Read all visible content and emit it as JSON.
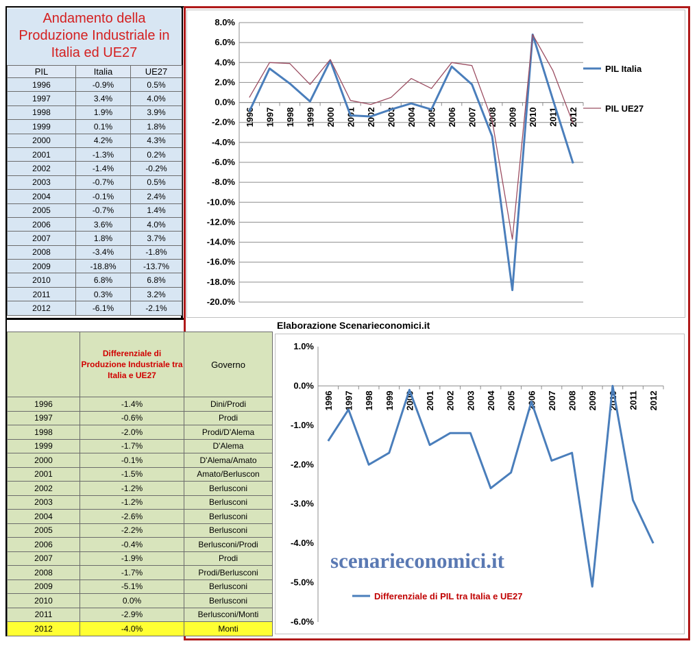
{
  "table1": {
    "title": "Andamento della Produzione Industriale in Italia ed UE27",
    "headers": [
      "PIL",
      "Italia",
      "UE27"
    ],
    "rows": [
      [
        "1996",
        "-0.9%",
        "0.5%"
      ],
      [
        "1997",
        "3.4%",
        "4.0%"
      ],
      [
        "1998",
        "1.9%",
        "3.9%"
      ],
      [
        "1999",
        "0.1%",
        "1.8%"
      ],
      [
        "2000",
        "4.2%",
        "4.3%"
      ],
      [
        "2001",
        "-1.3%",
        "0.2%"
      ],
      [
        "2002",
        "-1.4%",
        "-0.2%"
      ],
      [
        "2003",
        "-0.7%",
        "0.5%"
      ],
      [
        "2004",
        "-0.1%",
        "2.4%"
      ],
      [
        "2005",
        "-0.7%",
        "1.4%"
      ],
      [
        "2006",
        "3.6%",
        "4.0%"
      ],
      [
        "2007",
        "1.8%",
        "3.7%"
      ],
      [
        "2008",
        "-3.4%",
        "-1.8%"
      ],
      [
        "2009",
        "-18.8%",
        "-13.7%"
      ],
      [
        "2010",
        "6.8%",
        "6.8%"
      ],
      [
        "2011",
        "0.3%",
        "3.2%"
      ],
      [
        "2012",
        "-6.1%",
        "-2.1%"
      ]
    ]
  },
  "table2": {
    "header_diff": "Differenziale di Produzione Industriale tra Italia e UE27",
    "header_gov": "Governo",
    "rows": [
      [
        "1996",
        "-1.4%",
        "Dini/Prodi"
      ],
      [
        "1997",
        "-0.6%",
        "Prodi"
      ],
      [
        "1998",
        "-2.0%",
        "Prodi/D'Alema"
      ],
      [
        "1999",
        "-1.7%",
        "D'Alema"
      ],
      [
        "2000",
        "-0.1%",
        "D'Alema/Amato"
      ],
      [
        "2001",
        "-1.5%",
        "Amato/Berluscon"
      ],
      [
        "2002",
        "-1.2%",
        "Berlusconi"
      ],
      [
        "2003",
        "-1.2%",
        "Berlusconi"
      ],
      [
        "2004",
        "-2.6%",
        "Berlusconi"
      ],
      [
        "2005",
        "-2.2%",
        "Berlusconi"
      ],
      [
        "2006",
        "-0.4%",
        "Berlusconi/Prodi"
      ],
      [
        "2007",
        "-1.9%",
        "Prodi"
      ],
      [
        "2008",
        "-1.7%",
        "Prodi/Berlusconi"
      ],
      [
        "2009",
        "-5.1%",
        "Berlusconi"
      ],
      [
        "2010",
        "0.0%",
        "Berlusconi"
      ],
      [
        "2011",
        "-2.9%",
        "Berlusconi/Monti"
      ],
      [
        "2012",
        "-4.0%",
        "Monti"
      ]
    ]
  },
  "credit": "Elaborazione Scenarieconomici.it",
  "watermark": "scenarieconomici.it",
  "colors": {
    "italia": "#4a7ebb",
    "ue27": "#9b4d61",
    "frame": "#b01a1a",
    "title": "#d42020"
  },
  "chart_data": [
    {
      "type": "line",
      "title": "",
      "xlabel": "",
      "ylabel": "",
      "x": [
        "1996",
        "1997",
        "1998",
        "1999",
        "2000",
        "2001",
        "2002",
        "2003",
        "2004",
        "2005",
        "2006",
        "2007",
        "2008",
        "2009",
        "2010",
        "2011",
        "2012"
      ],
      "series": [
        {
          "name": "PIL Italia",
          "values": [
            -0.9,
            3.4,
            1.9,
            0.1,
            4.2,
            -1.3,
            -1.4,
            -0.7,
            -0.1,
            -0.7,
            3.6,
            1.8,
            -3.4,
            -18.8,
            6.8,
            0.3,
            -6.1
          ]
        },
        {
          "name": "PIL UE27",
          "values": [
            0.5,
            4.0,
            3.9,
            1.8,
            4.3,
            0.2,
            -0.2,
            0.5,
            2.4,
            1.4,
            4.0,
            3.7,
            -1.8,
            -13.7,
            6.8,
            3.2,
            -2.1
          ]
        }
      ],
      "ylim": [
        -20,
        8
      ],
      "yticks": [
        "8.0%",
        "6.0%",
        "4.0%",
        "2.0%",
        "0.0%",
        "-2.0%",
        "-4.0%",
        "-6.0%",
        "-8.0%",
        "-10.0%",
        "-12.0%",
        "-14.0%",
        "-16.0%",
        "-18.0%",
        "-20.0%"
      ],
      "grid": true,
      "legend": "right"
    },
    {
      "type": "line",
      "title": "",
      "xlabel": "",
      "ylabel": "",
      "x": [
        "1996",
        "1997",
        "1998",
        "1999",
        "2000",
        "2001",
        "2002",
        "2003",
        "2004",
        "2005",
        "2006",
        "2007",
        "2008",
        "2009",
        "2010",
        "2011",
        "2012"
      ],
      "series": [
        {
          "name": "Differenziale di PIL tra Italia e UE27",
          "values": [
            -1.4,
            -0.6,
            -2.0,
            -1.7,
            -0.1,
            -1.5,
            -1.2,
            -1.2,
            -2.6,
            -2.2,
            -0.4,
            -1.9,
            -1.7,
            -5.1,
            0.0,
            -2.9,
            -4.0
          ]
        }
      ],
      "ylim": [
        -6,
        1
      ],
      "yticks": [
        "1.0%",
        "0.0%",
        "-1.0%",
        "-2.0%",
        "-3.0%",
        "-4.0%",
        "-5.0%",
        "-6.0%"
      ],
      "grid": false,
      "legend": "bottom"
    }
  ]
}
